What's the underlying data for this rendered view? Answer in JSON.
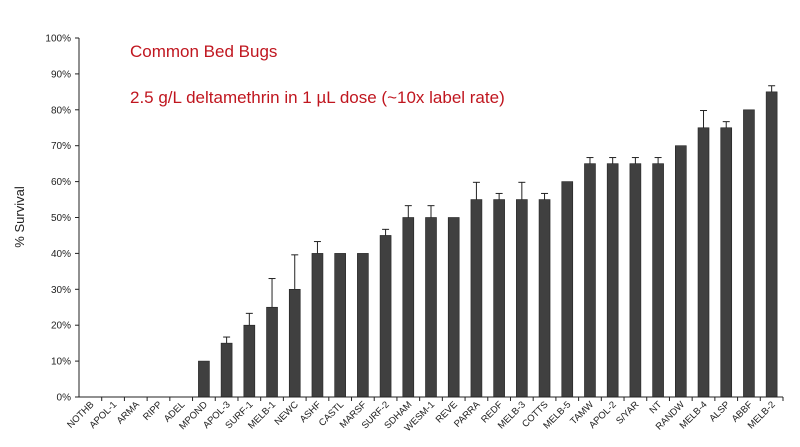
{
  "chart_data": {
    "type": "bar",
    "title": "Common Bed Bugs",
    "subtitle": "2.5 g/L deltamethrin in 1 µL dose (~10x label rate)",
    "xlabel": "",
    "ylabel": "% Survival",
    "ylim": [
      0,
      100
    ],
    "yticks": [
      "0%",
      "10%",
      "20%",
      "30%",
      "40%",
      "50%",
      "60%",
      "70%",
      "80%",
      "90%",
      "100%"
    ],
    "grid": false,
    "bar_color": "#404040",
    "title_color": "#c0161f",
    "categories": [
      "NOTHB",
      "APOL-1",
      "ARMA",
      "RIPP",
      "ADEL",
      "MPOND",
      "APOL-3",
      "SURF-1",
      "MELB-1",
      "NEWC",
      "ASHF",
      "CASTL",
      "MARSF",
      "SURF-2",
      "SDHAM",
      "WESM-1",
      "REVE",
      "PARRA",
      "REDF",
      "MELB-3",
      "COTTS",
      "MELB-5",
      "TAMW",
      "APOL-2",
      "S/YAR",
      "NT",
      "RANDW",
      "MELB-4",
      "ALSP",
      "ABBF",
      "MELB-2"
    ],
    "values": [
      0,
      0,
      0,
      0,
      0,
      10,
      15,
      20,
      25,
      30,
      40,
      40,
      40,
      45,
      50,
      50,
      50,
      55,
      55,
      55,
      55,
      60,
      65,
      65,
      65,
      65,
      70,
      75,
      75,
      80,
      85
    ],
    "errors": [
      0,
      0,
      0,
      0,
      0,
      0,
      1.7,
      3.3,
      8,
      9.6,
      3.3,
      0,
      0,
      1.7,
      3.3,
      3.3,
      0,
      4.8,
      1.7,
      4.8,
      1.7,
      0,
      1.7,
      1.7,
      1.7,
      1.7,
      0,
      4.8,
      1.7,
      0,
      1.7
    ]
  }
}
